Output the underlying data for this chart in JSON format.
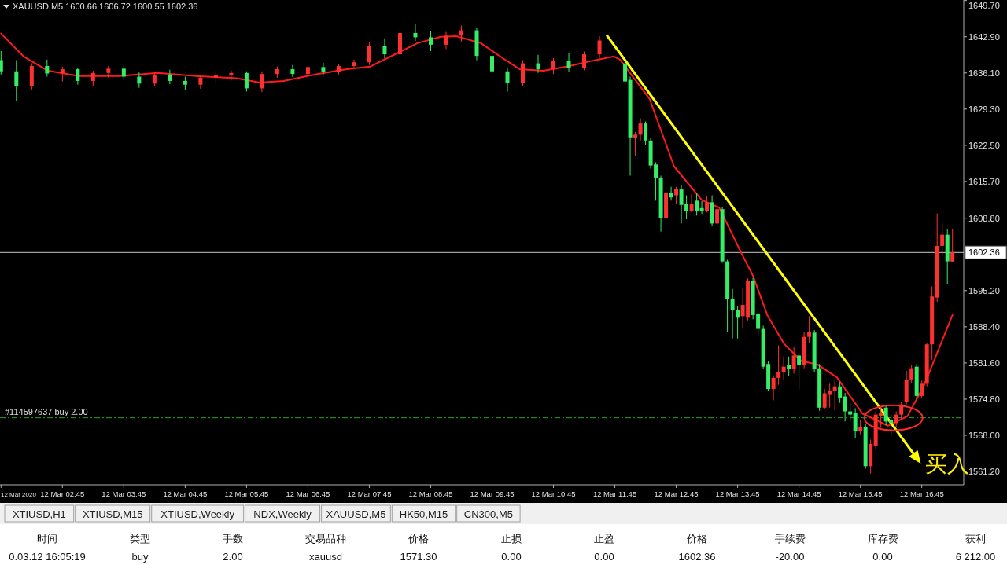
{
  "chart_data": [
    {
      "type": "candlestick",
      "title": "XAUUSD,M5  1600.66 1606.72 1600.55 1602.36",
      "xlim": [
        "2020-03-12T01:44",
        "2020-03-12T17:26"
      ],
      "ylim": [
        1558.7,
        1649.8
      ],
      "xticks": [
        {
          "value": "2020-03-12T01:45",
          "label": "12 Mar 2020"
        },
        {
          "value": "2020-03-12T02:45",
          "label": "12 Mar 02:45"
        },
        {
          "value": "2020-03-12T03:45",
          "label": "12 Mar 03:45"
        },
        {
          "value": "2020-03-12T04:45",
          "label": "12 Mar 04:45"
        },
        {
          "value": "2020-03-12T05:45",
          "label": "12 Mar 05:45"
        },
        {
          "value": "2020-03-12T06:45",
          "label": "12 Mar 06:45"
        },
        {
          "value": "2020-03-12T07:45",
          "label": "12 Mar 07:45"
        },
        {
          "value": "2020-03-12T08:45",
          "label": "12 Mar 08:45"
        },
        {
          "value": "2020-03-12T09:45",
          "label": "12 Mar 09:45"
        },
        {
          "value": "2020-03-12T10:45",
          "label": "12 Mar 10:45"
        },
        {
          "value": "2020-03-12T11:45",
          "label": "12 Mar 11:45"
        },
        {
          "value": "2020-03-12T12:45",
          "label": "12 Mar 12:45"
        },
        {
          "value": "2020-03-12T13:45",
          "label": "12 Mar 13:45"
        },
        {
          "value": "2020-03-12T14:45",
          "label": "12 Mar 14:45"
        },
        {
          "value": "2020-03-12T15:45",
          "label": "12 Mar 15:45"
        },
        {
          "value": "2020-03-12T16:45",
          "label": "12 Mar 16:45"
        }
      ],
      "yticks": [
        {
          "value": 1561.2,
          "label": "1561.20"
        },
        {
          "value": 1568.0,
          "label": "1568.00"
        },
        {
          "value": 1574.8,
          "label": "1574.80"
        },
        {
          "value": 1581.6,
          "label": "1581.60"
        },
        {
          "value": 1588.4,
          "label": "1588.40"
        },
        {
          "value": 1595.2,
          "label": "1595.20"
        },
        {
          "value": 1608.8,
          "label": "1608.80"
        },
        {
          "value": 1615.7,
          "label": "1615.70"
        },
        {
          "value": 1622.5,
          "label": "1622.50"
        },
        {
          "value": 1629.3,
          "label": "1629.30"
        },
        {
          "value": 1636.1,
          "label": "1636.10"
        },
        {
          "value": 1642.9,
          "label": "1642.90"
        },
        {
          "value": 1649.7,
          "label": "1649.70"
        }
      ],
      "x": [
        "2020-03-12T01:45",
        "2020-03-12T02:00",
        "2020-03-12T02:15",
        "2020-03-12T02:30",
        "2020-03-12T02:45",
        "2020-03-12T03:00",
        "2020-03-12T03:15",
        "2020-03-12T03:30",
        "2020-03-12T03:45",
        "2020-03-12T04:00",
        "2020-03-12T04:15",
        "2020-03-12T04:30",
        "2020-03-12T04:45",
        "2020-03-12T05:00",
        "2020-03-12T05:15",
        "2020-03-12T05:30",
        "2020-03-12T05:45",
        "2020-03-12T06:00",
        "2020-03-12T06:15",
        "2020-03-12T06:30",
        "2020-03-12T06:45",
        "2020-03-12T07:00",
        "2020-03-12T07:15",
        "2020-03-12T07:30",
        "2020-03-12T07:45",
        "2020-03-12T08:00",
        "2020-03-12T08:15",
        "2020-03-12T08:30",
        "2020-03-12T08:45",
        "2020-03-12T09:00",
        "2020-03-12T09:15",
        "2020-03-12T09:30",
        "2020-03-12T09:45",
        "2020-03-12T10:00",
        "2020-03-12T10:15",
        "2020-03-12T10:30",
        "2020-03-12T10:45",
        "2020-03-12T11:00",
        "2020-03-12T11:15",
        "2020-03-12T11:30",
        "2020-03-12T11:55",
        "2020-03-12T12:00",
        "2020-03-12T12:05",
        "2020-03-12T12:10",
        "2020-03-12T12:15",
        "2020-03-12T12:20",
        "2020-03-12T12:25",
        "2020-03-12T12:30",
        "2020-03-12T12:35",
        "2020-03-12T12:40",
        "2020-03-12T12:45",
        "2020-03-12T12:50",
        "2020-03-12T12:55",
        "2020-03-12T13:00",
        "2020-03-12T13:05",
        "2020-03-12T13:10",
        "2020-03-12T13:15",
        "2020-03-12T13:20",
        "2020-03-12T13:25",
        "2020-03-12T13:30",
        "2020-03-12T13:35",
        "2020-03-12T13:40",
        "2020-03-12T13:45",
        "2020-03-12T13:50",
        "2020-03-12T13:55",
        "2020-03-12T14:00",
        "2020-03-12T14:05",
        "2020-03-12T14:10",
        "2020-03-12T14:15",
        "2020-03-12T14:20",
        "2020-03-12T14:25",
        "2020-03-12T14:30",
        "2020-03-12T14:35",
        "2020-03-12T14:40",
        "2020-03-12T14:45",
        "2020-03-12T14:50",
        "2020-03-12T14:55",
        "2020-03-12T15:00",
        "2020-03-12T15:05",
        "2020-03-12T15:10",
        "2020-03-12T15:15",
        "2020-03-12T15:20",
        "2020-03-12T15:25",
        "2020-03-12T15:30",
        "2020-03-12T15:35",
        "2020-03-12T15:40",
        "2020-03-12T15:45",
        "2020-03-12T15:50",
        "2020-03-12T15:55",
        "2020-03-12T16:00",
        "2020-03-12T16:05",
        "2020-03-12T16:10",
        "2020-03-12T16:15",
        "2020-03-12T16:20",
        "2020-03-12T16:25",
        "2020-03-12T16:30",
        "2020-03-12T16:35",
        "2020-03-12T16:40",
        "2020-03-12T16:45",
        "2020-03-12T16:50",
        "2020-03-12T16:55",
        "2020-03-12T17:00",
        "2020-03-12T17:05",
        "2020-03-12T17:10",
        "2020-03-12T17:15"
      ],
      "ohlc": [
        [
          1638.5,
          1640.2,
          1635.8,
          1636.4
        ],
        [
          1636.4,
          1638.5,
          1630.9,
          1633.6
        ],
        [
          1633.6,
          1637.9,
          1633.0,
          1637.4
        ],
        [
          1637.4,
          1638.6,
          1635.4,
          1636.0
        ],
        [
          1636.0,
          1637.3,
          1634.5,
          1636.8
        ],
        [
          1636.8,
          1637.1,
          1633.9,
          1634.6
        ],
        [
          1634.6,
          1636.5,
          1633.6,
          1636.1
        ],
        [
          1636.1,
          1637.4,
          1635.2,
          1636.9
        ],
        [
          1636.9,
          1637.5,
          1634.8,
          1635.4
        ],
        [
          1635.4,
          1636.2,
          1633.3,
          1634.1
        ],
        [
          1634.1,
          1636.2,
          1633.7,
          1635.8
        ],
        [
          1635.8,
          1636.7,
          1634.0,
          1634.6
        ],
        [
          1634.6,
          1635.4,
          1632.9,
          1633.9
        ],
        [
          1633.9,
          1635.6,
          1633.1,
          1635.2
        ],
        [
          1635.2,
          1636.3,
          1634.3,
          1635.7
        ],
        [
          1635.7,
          1636.6,
          1634.7,
          1636.1
        ],
        [
          1636.1,
          1636.4,
          1632.6,
          1633.2
        ],
        [
          1633.2,
          1636.4,
          1632.5,
          1635.9
        ],
        [
          1635.9,
          1637.3,
          1635.2,
          1636.8
        ],
        [
          1636.8,
          1637.6,
          1635.3,
          1635.9
        ],
        [
          1635.9,
          1637.5,
          1635.1,
          1637.2
        ],
        [
          1637.2,
          1638.0,
          1635.6,
          1636.3
        ],
        [
          1636.3,
          1637.8,
          1635.8,
          1637.4
        ],
        [
          1637.4,
          1638.6,
          1636.9,
          1638.1
        ],
        [
          1638.1,
          1641.8,
          1637.6,
          1641.2
        ],
        [
          1641.2,
          1642.6,
          1638.8,
          1639.6
        ],
        [
          1639.6,
          1644.4,
          1639.1,
          1643.6
        ],
        [
          1643.6,
          1645.3,
          1642.1,
          1642.8
        ],
        [
          1642.8,
          1643.9,
          1640.2,
          1641.4
        ],
        [
          1641.4,
          1643.8,
          1640.6,
          1643.1
        ],
        [
          1643.1,
          1645.0,
          1642.0,
          1644.1
        ],
        [
          1644.1,
          1644.6,
          1638.5,
          1639.3
        ],
        [
          1639.3,
          1640.2,
          1635.8,
          1636.4
        ],
        [
          1636.4,
          1637.0,
          1632.6,
          1634.2
        ],
        [
          1634.2,
          1638.5,
          1633.7,
          1637.9
        ],
        [
          1637.9,
          1639.5,
          1636.1,
          1636.8
        ],
        [
          1636.8,
          1638.9,
          1635.9,
          1638.3
        ],
        [
          1638.3,
          1639.8,
          1636.3,
          1637.0
        ],
        [
          1637.0,
          1640.1,
          1636.6,
          1639.6
        ],
        [
          1639.6,
          1643.0,
          1638.9,
          1642.2
        ],
        [
          1637.9,
          1638.4,
          1634.0,
          1634.5
        ],
        [
          1634.8,
          1635.4,
          1616.8,
          1624.0
        ],
        [
          1623.9,
          1625.0,
          1620.5,
          1624.5
        ],
        [
          1624.5,
          1627.6,
          1623.4,
          1626.6
        ],
        [
          1626.6,
          1627.0,
          1622.5,
          1623.4
        ],
        [
          1623.4,
          1623.9,
          1618.1,
          1618.7
        ],
        [
          1618.9,
          1619.3,
          1612.1,
          1616.3
        ],
        [
          1616.3,
          1616.8,
          1606.3,
          1608.9
        ],
        [
          1608.9,
          1614.7,
          1608.6,
          1613.6
        ],
        [
          1613.6,
          1614.7,
          1612.1,
          1612.7
        ],
        [
          1613.1,
          1614.7,
          1611.5,
          1614.3
        ],
        [
          1614.2,
          1615.0,
          1607.8,
          1611.3
        ],
        [
          1611.5,
          1613.1,
          1608.6,
          1610.2
        ],
        [
          1610.2,
          1613.3,
          1609.9,
          1611.5
        ],
        [
          1612.1,
          1613.6,
          1609.3,
          1610.2
        ],
        [
          1610.7,
          1612.0,
          1609.6,
          1610.2
        ],
        [
          1610.2,
          1613.0,
          1609.9,
          1611.8
        ],
        [
          1611.8,
          1613.1,
          1607.3,
          1607.8
        ],
        [
          1607.8,
          1611.2,
          1607.2,
          1610.5
        ],
        [
          1610.5,
          1611.0,
          1600.4,
          1600.7
        ],
        [
          1600.7,
          1601.0,
          1587.5,
          1593.6
        ],
        [
          1593.6,
          1595.5,
          1586.2,
          1591.5
        ],
        [
          1591.5,
          1592.2,
          1586.2,
          1590.1
        ],
        [
          1590.4,
          1595.7,
          1588.0,
          1592.5
        ],
        [
          1590.1,
          1597.5,
          1589.6,
          1597.0
        ],
        [
          1597.0,
          1597.6,
          1589.8,
          1590.6
        ],
        [
          1590.9,
          1591.6,
          1586.7,
          1588.0
        ],
        [
          1588.0,
          1588.6,
          1580.4,
          1580.9
        ],
        [
          1581.4,
          1581.9,
          1576.4,
          1576.7
        ],
        [
          1576.7,
          1579.3,
          1574.6,
          1578.8
        ],
        [
          1578.8,
          1584.9,
          1577.5,
          1579.9
        ],
        [
          1579.9,
          1582.8,
          1578.3,
          1580.9
        ],
        [
          1581.2,
          1582.8,
          1579.1,
          1580.4
        ],
        [
          1580.4,
          1584.6,
          1579.6,
          1583.0
        ],
        [
          1583.0,
          1583.5,
          1576.7,
          1581.2
        ],
        [
          1581.2,
          1587.5,
          1580.6,
          1586.5
        ],
        [
          1586.5,
          1590.4,
          1585.4,
          1587.5
        ],
        [
          1587.3,
          1587.8,
          1579.9,
          1580.4
        ],
        [
          1580.6,
          1581.4,
          1572.6,
          1573.2
        ],
        [
          1573.2,
          1576.7,
          1573.0,
          1575.9
        ],
        [
          1575.6,
          1577.7,
          1573.2,
          1576.4
        ],
        [
          1576.4,
          1578.3,
          1572.7,
          1577.2
        ],
        [
          1577.2,
          1578.0,
          1574.1,
          1575.1
        ],
        [
          1575.3,
          1576.0,
          1570.6,
          1572.5
        ],
        [
          1572.5,
          1574.0,
          1570.6,
          1571.9
        ],
        [
          1572.2,
          1573.1,
          1567.4,
          1568.8
        ],
        [
          1568.8,
          1571.0,
          1568.2,
          1569.5
        ],
        [
          1569.5,
          1570.1,
          1561.7,
          1562.2
        ],
        [
          1562.2,
          1567.2,
          1560.8,
          1566.4
        ],
        [
          1566.1,
          1572.5,
          1565.5,
          1571.9
        ],
        [
          1571.6,
          1573.3,
          1569.4,
          1572.2
        ],
        [
          1573.2,
          1573.6,
          1569.9,
          1570.6
        ],
        [
          1570.9,
          1571.8,
          1568.2,
          1570.3
        ],
        [
          1570.3,
          1572.5,
          1569.5,
          1571.9
        ],
        [
          1571.9,
          1574.3,
          1571.0,
          1573.8
        ],
        [
          1574.3,
          1580.1,
          1573.8,
          1578.5
        ],
        [
          1578.5,
          1581.2,
          1577.8,
          1580.6
        ],
        [
          1580.9,
          1581.4,
          1574.8,
          1575.4
        ],
        [
          1575.4,
          1578.3,
          1574.9,
          1577.7
        ],
        [
          1577.7,
          1585.4,
          1577.2,
          1585.1
        ],
        [
          1585.1,
          1596.0,
          1582.2,
          1594.1
        ],
        [
          1593.9,
          1609.7,
          1593.1,
          1603.6
        ],
        [
          1603.6,
          1607.8,
          1601.6,
          1605.7
        ],
        [
          1605.7,
          1606.8,
          1596.5,
          1600.7
        ],
        [
          1600.66,
          1606.72,
          1600.55,
          1602.36
        ]
      ],
      "colors": [
        "#33ee66",
        "#33ee66",
        "#ff3030",
        "#33ee66",
        "#ff3030",
        "#33ee66",
        "#ff3030",
        "#ff3030",
        "#33ee66",
        "#33ee66",
        "#ff3030",
        "#33ee66",
        "#33ee66",
        "#ff3030",
        "#ff3030",
        "#ff3030",
        "#33ee66",
        "#ff3030",
        "#ff3030",
        "#33ee66",
        "#ff3030",
        "#33ee66",
        "#ff3030",
        "#ff3030",
        "#ff3030",
        "#33ee66",
        "#ff3030",
        "#33ee66",
        "#33ee66",
        "#ff3030",
        "#ff3030",
        "#33ee66",
        "#33ee66",
        "#33ee66",
        "#ff3030",
        "#33ee66",
        "#ff3030",
        "#33ee66",
        "#ff3030",
        "#ff3030",
        "#33ee66",
        "#33ee66",
        "#ff3030",
        "#ff3030",
        "#33ee66",
        "#33ee66",
        "#33ee66",
        "#33ee66",
        "#ff3030",
        "#33ee66",
        "#ff3030",
        "#33ee66",
        "#33ee66",
        "#ff3030",
        "#33ee66",
        "#33ee66",
        "#ff3030",
        "#33ee66",
        "#ff3030",
        "#33ee66",
        "#33ee66",
        "#33ee66",
        "#33ee66",
        "#ff3030",
        "#ff3030",
        "#33ee66",
        "#33ee66",
        "#33ee66",
        "#33ee66",
        "#ff3030",
        "#ff3030",
        "#ff3030",
        "#33ee66",
        "#ff3030",
        "#33ee66",
        "#ff3030",
        "#ff3030",
        "#33ee66",
        "#33ee66",
        "#ff3030",
        "#ff3030",
        "#ff3030",
        "#33ee66",
        "#33ee66",
        "#33ee66",
        "#33ee66",
        "#ff3030",
        "#33ee66",
        "#ff3030",
        "#ff3030",
        "#ff3030",
        "#33ee66",
        "#33ee66",
        "#ff3030",
        "#ff3030",
        "#ff3030",
        "#ff3030",
        "#33ee66",
        "#ff3030",
        "#ff3030",
        "#ff3030",
        "#ff3030",
        "#ff3030",
        "#33ee66",
        "#ff3030"
      ],
      "series": [
        {
          "type": "line",
          "color": "#ff1a1a",
          "x": [
            "2020-03-12T01:45",
            "2020-03-12T02:07",
            "2020-03-12T02:31",
            "2020-03-12T03:01",
            "2020-03-12T03:40",
            "2020-03-12T04:18",
            "2020-03-12T04:56",
            "2020-03-12T05:35",
            "2020-03-12T05:58",
            "2020-03-12T06:21",
            "2020-03-12T06:52",
            "2020-03-12T07:23",
            "2020-03-12T07:46",
            "2020-03-12T08:09",
            "2020-03-12T08:32",
            "2020-03-12T08:55",
            "2020-03-12T09:10",
            "2020-03-12T09:34",
            "2020-03-12T09:56",
            "2020-03-12T10:12",
            "2020-03-12T10:35",
            "2020-03-12T10:58",
            "2020-03-12T11:21",
            "2020-03-12T11:44",
            "2020-03-12T11:50",
            "2020-03-12T12:19",
            "2020-03-12T12:43",
            "2020-03-12T13:10",
            "2020-03-12T13:27",
            "2020-03-12T13:49",
            "2020-03-12T14:00",
            "2020-03-12T14:14",
            "2020-03-12T14:30",
            "2020-03-12T14:47",
            "2020-03-12T15:03",
            "2020-03-12T15:22",
            "2020-03-12T15:47",
            "2020-03-12T16:12",
            "2020-03-12T16:31",
            "2020-03-12T16:47",
            "2020-03-12T17:15"
          ],
          "values": [
            1643.5,
            1639.2,
            1636.5,
            1635.5,
            1635.5,
            1636.1,
            1635.5,
            1635.1,
            1634.3,
            1634.6,
            1635.8,
            1636.8,
            1637.3,
            1639.5,
            1641.7,
            1642.9,
            1643.0,
            1641.7,
            1638.8,
            1636.8,
            1636.5,
            1637.3,
            1638.3,
            1639.2,
            1638.6,
            1631.2,
            1618.5,
            1612.2,
            1610.8,
            1602.1,
            1598.0,
            1590.6,
            1585.3,
            1582.0,
            1581.3,
            1578.9,
            1572.1,
            1569.8,
            1571.6,
            1577.3,
            1590.6
          ]
        }
      ],
      "ref_lines": [
        {
          "axis": "y",
          "value": 1602.36,
          "label": "1602.36",
          "color": "#c8c8c8",
          "line_style": "solid"
        },
        {
          "axis": "y",
          "value": 1571.3,
          "label": "#114597637 buy 2.00",
          "color": "#1fa81f",
          "line_style": "dashed"
        }
      ],
      "annotations": [
        "买入"
      ]
    },
    {
      "type": "other",
      "annotations": [
        "XTIUSD,H1",
        "XTIUSD,M15",
        "XTIUSD,Weekly",
        "NDX,Weekly",
        "XAUUSD,M5",
        "HK50,M15",
        "CN300,M5"
      ]
    },
    {
      "type": "other",
      "annotations": [
        "时间",
        "类型",
        "手数",
        "交易品种",
        "价格",
        "止损",
        "止盈",
        "价格",
        "手续费",
        "库存费",
        "获利"
      ]
    },
    {
      "type": "other",
      "annotations": [
        "0.03.12 16:05:19",
        "buy",
        "2.00",
        "xauusd",
        "1571.30",
        "0.00",
        "0.00",
        "1602.36",
        "-20.00",
        "0.00",
        "6 212.00"
      ]
    }
  ]
}
